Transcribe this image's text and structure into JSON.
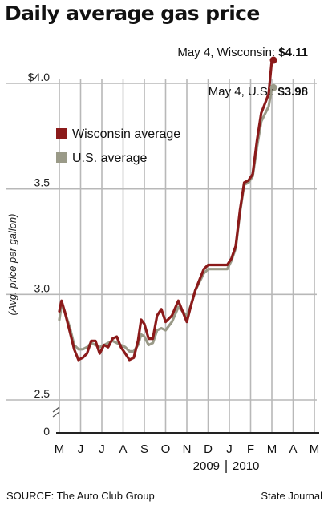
{
  "title": "Daily average gas price",
  "source": "SOURCE: The Auto Club Group",
  "credit": "State Journal",
  "colors": {
    "wisconsin": "#8b1a1a",
    "us": "#9a9a88",
    "grid": "#b8b8b8"
  },
  "chart_data": {
    "type": "line",
    "title": "Daily average gas price",
    "ylabel": "(Avg. price per gallon)",
    "ylim": [
      2.5,
      4.1
    ],
    "yticks": [
      {
        "value": 4.0,
        "label": "$4.0"
      },
      {
        "value": 3.5,
        "label": "3.5"
      },
      {
        "value": 3.0,
        "label": "3.0"
      },
      {
        "value": 2.5,
        "label": "2.5"
      }
    ],
    "zero_label": "0",
    "x_months": [
      "M",
      "J",
      "J",
      "A",
      "S",
      "O",
      "N",
      "D",
      "J",
      "F",
      "M",
      "A",
      "M"
    ],
    "years": [
      "2009",
      "2010"
    ],
    "grid": true,
    "legend": {
      "placement": "upper-left",
      "entries": [
        "Wisconsin average",
        "U.S. average"
      ]
    },
    "annotations": [
      {
        "series": "Wisconsin average",
        "prefix": "May 4, Wisconsin: ",
        "value": "$4.11"
      },
      {
        "series": "U.S. average",
        "prefix": "May 4, U.S.: ",
        "value": "$3.98"
      }
    ],
    "series": [
      {
        "name": "Wisconsin average",
        "points": [
          [
            0,
            2.92
          ],
          [
            0.1,
            2.97
          ],
          [
            0.25,
            2.92
          ],
          [
            0.5,
            2.82
          ],
          [
            0.7,
            2.74
          ],
          [
            0.9,
            2.69
          ],
          [
            1.1,
            2.7
          ],
          [
            1.3,
            2.72
          ],
          [
            1.5,
            2.78
          ],
          [
            1.7,
            2.78
          ],
          [
            1.9,
            2.72
          ],
          [
            2.1,
            2.76
          ],
          [
            2.3,
            2.75
          ],
          [
            2.5,
            2.79
          ],
          [
            2.7,
            2.8
          ],
          [
            2.9,
            2.75
          ],
          [
            3.1,
            2.72
          ],
          [
            3.3,
            2.69
          ],
          [
            3.5,
            2.7
          ],
          [
            3.7,
            2.78
          ],
          [
            3.85,
            2.88
          ],
          [
            4.0,
            2.86
          ],
          [
            4.2,
            2.79
          ],
          [
            4.4,
            2.79
          ],
          [
            4.6,
            2.9
          ],
          [
            4.8,
            2.93
          ],
          [
            5.0,
            2.87
          ],
          [
            5.3,
            2.9
          ],
          [
            5.6,
            2.97
          ],
          [
            5.8,
            2.92
          ],
          [
            6.0,
            2.87
          ],
          [
            6.2,
            2.95
          ],
          [
            6.4,
            3.02
          ],
          [
            6.6,
            3.07
          ],
          [
            6.8,
            3.12
          ],
          [
            7.0,
            3.14
          ],
          [
            7.5,
            3.14
          ],
          [
            7.9,
            3.14
          ],
          [
            8.1,
            3.17
          ],
          [
            8.3,
            3.23
          ],
          [
            8.5,
            3.4
          ],
          [
            8.7,
            3.53
          ],
          [
            8.9,
            3.54
          ],
          [
            9.1,
            3.57
          ],
          [
            9.3,
            3.73
          ],
          [
            9.5,
            3.86
          ],
          [
            9.7,
            3.91
          ],
          [
            9.85,
            3.95
          ],
          [
            10.0,
            4.11
          ]
        ]
      },
      {
        "name": "U.S. average",
        "points": [
          [
            0,
            2.88
          ],
          [
            0.1,
            2.95
          ],
          [
            0.25,
            2.92
          ],
          [
            0.5,
            2.84
          ],
          [
            0.7,
            2.76
          ],
          [
            0.9,
            2.74
          ],
          [
            1.1,
            2.74
          ],
          [
            1.3,
            2.75
          ],
          [
            1.5,
            2.77
          ],
          [
            1.7,
            2.76
          ],
          [
            1.9,
            2.75
          ],
          [
            2.1,
            2.76
          ],
          [
            2.3,
            2.77
          ],
          [
            2.5,
            2.78
          ],
          [
            2.7,
            2.77
          ],
          [
            2.9,
            2.76
          ],
          [
            3.1,
            2.75
          ],
          [
            3.3,
            2.73
          ],
          [
            3.5,
            2.73
          ],
          [
            3.7,
            2.76
          ],
          [
            3.85,
            2.81
          ],
          [
            4.0,
            2.8
          ],
          [
            4.2,
            2.76
          ],
          [
            4.4,
            2.77
          ],
          [
            4.6,
            2.83
          ],
          [
            4.8,
            2.84
          ],
          [
            5.0,
            2.83
          ],
          [
            5.3,
            2.87
          ],
          [
            5.6,
            2.94
          ],
          [
            5.8,
            2.92
          ],
          [
            6.0,
            2.9
          ],
          [
            6.2,
            2.95
          ],
          [
            6.4,
            3.02
          ],
          [
            6.6,
            3.06
          ],
          [
            6.8,
            3.1
          ],
          [
            7.0,
            3.12
          ],
          [
            7.5,
            3.12
          ],
          [
            7.9,
            3.12
          ],
          [
            8.1,
            3.16
          ],
          [
            8.3,
            3.22
          ],
          [
            8.5,
            3.39
          ],
          [
            8.7,
            3.52
          ],
          [
            8.9,
            3.53
          ],
          [
            9.1,
            3.56
          ],
          [
            9.3,
            3.7
          ],
          [
            9.5,
            3.82
          ],
          [
            9.7,
            3.86
          ],
          [
            9.85,
            3.89
          ],
          [
            10.0,
            3.98
          ]
        ]
      }
    ]
  }
}
